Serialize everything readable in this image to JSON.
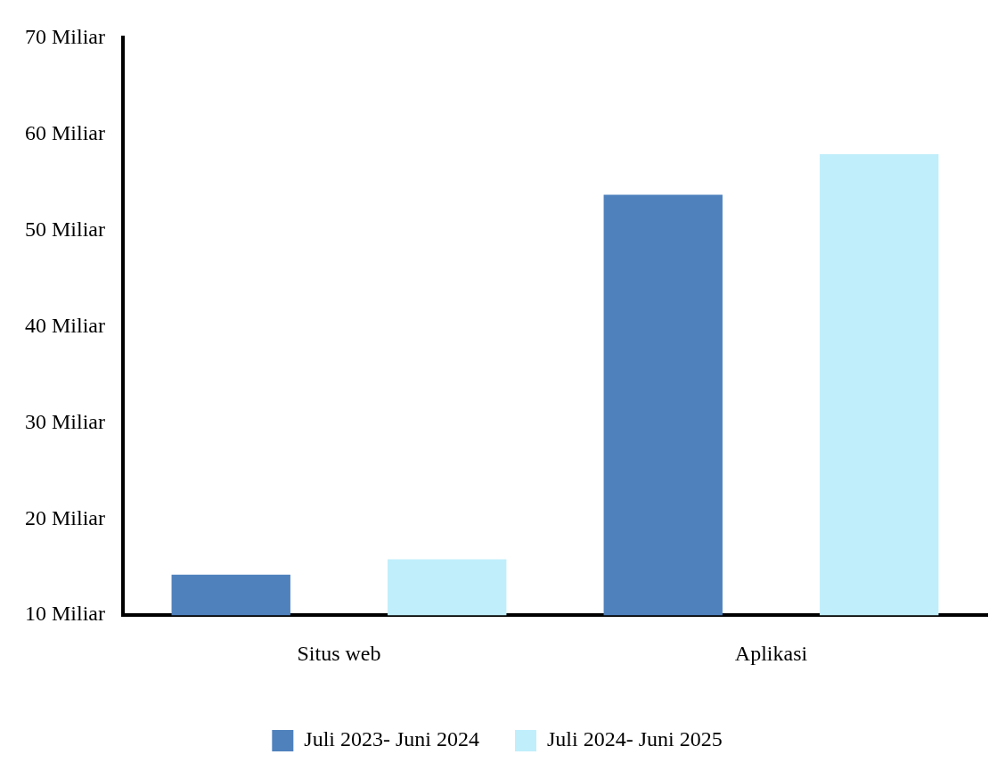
{
  "chart_data": {
    "type": "bar",
    "categories": [
      "Situs web",
      "Aplikasi"
    ],
    "series": [
      {
        "name": "Juli 2023- Juni 2024",
        "color": "#4f81bd",
        "values": [
          14.2,
          53.7
        ]
      },
      {
        "name": "Juli 2024- Juni 2025",
        "color": "#c0eefb",
        "values": [
          15.8,
          57.9
        ]
      }
    ],
    "ylim": [
      10,
      70
    ],
    "yticks": [
      {
        "value": 10,
        "label": "10 Miliar"
      },
      {
        "value": 20,
        "label": "20 Miliar"
      },
      {
        "value": 30,
        "label": "30 Miliar"
      },
      {
        "value": 40,
        "label": "40 Miliar"
      },
      {
        "value": 50,
        "label": "50 Miliar"
      },
      {
        "value": 60,
        "label": "60 Miliar"
      },
      {
        "value": 70,
        "label": "70 Miliar"
      }
    ],
    "grid": false,
    "legend": "bottom"
  }
}
